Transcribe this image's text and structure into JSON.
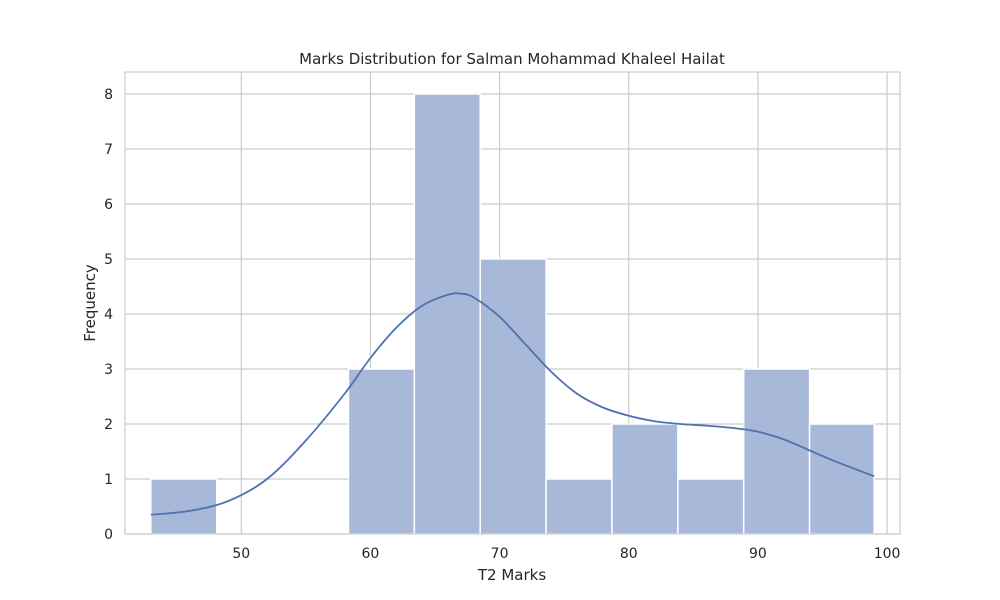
{
  "chart_data": {
    "type": "bar",
    "subtype": "histogram-with-kde",
    "title": "Marks Distribution for Salman Mohammad Khaleel Hailat",
    "xlabel": "T2 Marks",
    "ylabel": "Frequency",
    "xlim": [
      41,
      101
    ],
    "ylim": [
      0,
      8.4
    ],
    "xticks": [
      50,
      60,
      70,
      80,
      90,
      100
    ],
    "yticks": [
      0,
      1,
      2,
      3,
      4,
      5,
      6,
      7,
      8
    ],
    "grid": true,
    "bar_color": "#a5b7d8",
    "bar_edge_color": "#ffffff",
    "line_color": "#4c72b0",
    "bins": [
      {
        "start": 43.0,
        "end": 48.1,
        "count": 1
      },
      {
        "start": 48.1,
        "end": 53.2,
        "count": 0
      },
      {
        "start": 53.2,
        "end": 58.3,
        "count": 0
      },
      {
        "start": 58.3,
        "end": 63.4,
        "count": 3
      },
      {
        "start": 63.4,
        "end": 68.5,
        "count": 8
      },
      {
        "start": 68.5,
        "end": 73.6,
        "count": 5
      },
      {
        "start": 73.6,
        "end": 78.7,
        "count": 1
      },
      {
        "start": 78.7,
        "end": 83.8,
        "count": 2
      },
      {
        "start": 83.8,
        "end": 88.9,
        "count": 1
      },
      {
        "start": 88.9,
        "end": 94.0,
        "count": 3
      },
      {
        "start": 94.0,
        "end": 99.0,
        "count": 2
      }
    ],
    "kde": {
      "x": [
        43,
        46,
        49,
        52,
        55,
        58,
        60,
        62,
        64,
        66,
        67,
        68,
        70,
        72,
        74,
        76,
        78,
        80,
        82,
        84,
        86,
        88,
        90,
        92,
        94,
        96,
        99
      ],
      "y": [
        0.35,
        0.42,
        0.6,
        1.0,
        1.7,
        2.55,
        3.2,
        3.75,
        4.15,
        4.35,
        4.37,
        4.3,
        3.95,
        3.45,
        2.95,
        2.55,
        2.3,
        2.15,
        2.05,
        2.0,
        1.97,
        1.93,
        1.86,
        1.72,
        1.52,
        1.32,
        1.05
      ]
    }
  }
}
